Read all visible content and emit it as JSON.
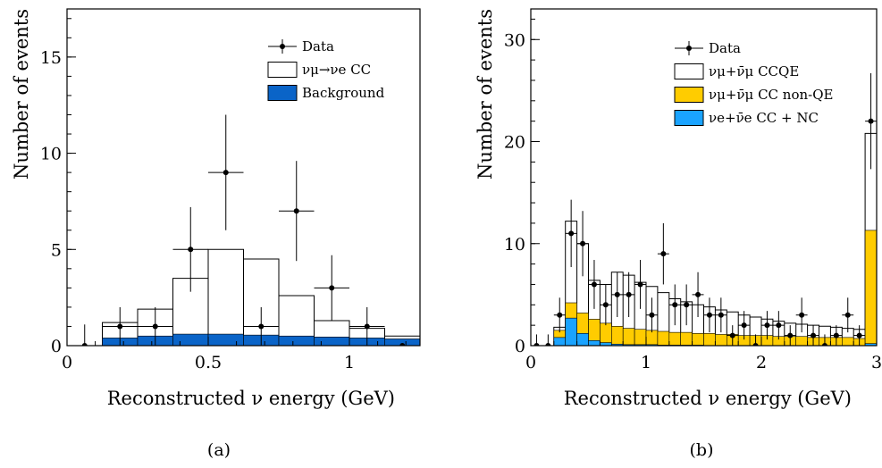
{
  "chart_data": [
    {
      "type": "histogram",
      "xlabel": "Reconstructed ν energy (GeV)",
      "ylabel": "Number of events",
      "xlim": [
        0,
        1.25
      ],
      "ylim": [
        0,
        17.5
      ],
      "xticks": [
        0,
        0.5,
        1
      ],
      "xtick_labels": [
        "0",
        "0.5",
        "1"
      ],
      "yticks": [
        0,
        5,
        10,
        15
      ],
      "ytick_labels": [
        "0",
        "5",
        "10",
        "15"
      ],
      "legend": {
        "placement": "top-right",
        "entries": [
          {
            "label": "Data",
            "kind": "marker"
          },
          {
            "label": "νμ→νe CC",
            "kind": "open-box"
          },
          {
            "label": "Background",
            "kind": "filled-box",
            "color": "#0a64c8"
          }
        ]
      },
      "bin_edges": [
        0,
        0.125,
        0.25,
        0.375,
        0.5,
        0.625,
        0.75,
        0.875,
        1.0,
        1.125,
        1.25
      ],
      "series": [
        {
          "name": "νμ→νe CC",
          "kind": "stack-top-outline",
          "values": [
            0,
            1.2,
            1.9,
            3.5,
            5.0,
            4.5,
            2.6,
            1.3,
            0.9,
            0.5
          ]
        },
        {
          "name": "Background",
          "kind": "filled-histogram",
          "color": "#0a64c8",
          "values": [
            0,
            0.4,
            0.5,
            0.6,
            0.6,
            0.55,
            0.5,
            0.45,
            0.4,
            0.35
          ]
        },
        {
          "name": "Data",
          "kind": "points-with-errors",
          "x": [
            0.0625,
            0.1875,
            0.3125,
            0.4375,
            0.5625,
            0.6875,
            0.8125,
            0.9375,
            1.0625,
            1.1875
          ],
          "y": [
            0,
            1,
            1,
            5,
            9,
            1,
            7,
            3,
            1,
            0
          ],
          "err_up": [
            1.1,
            1.0,
            1.0,
            2.2,
            3.0,
            1.0,
            2.6,
            1.7,
            1.0,
            0
          ],
          "err_down": [
            0,
            1.0,
            1.0,
            2.2,
            3.0,
            1.0,
            2.6,
            1.7,
            1.0,
            0
          ]
        }
      ],
      "caption": "(a)"
    },
    {
      "type": "histogram",
      "xlabel": "Reconstructed ν energy (GeV)",
      "ylabel": "Number of events",
      "xlim": [
        0,
        3
      ],
      "ylim": [
        0,
        33
      ],
      "xticks": [
        0,
        1,
        2,
        3
      ],
      "xtick_labels": [
        "0",
        "1",
        "2",
        "3"
      ],
      "yticks": [
        0,
        10,
        20,
        30
      ],
      "ytick_labels": [
        "0",
        "10",
        "20",
        "30"
      ],
      "legend": {
        "placement": "top-right",
        "entries": [
          {
            "label": "Data",
            "kind": "marker"
          },
          {
            "label": "νμ+ν̄μ CCQE",
            "kind": "open-box"
          },
          {
            "label": "νμ+ν̄μ CC non-QE",
            "kind": "filled-box",
            "color": "#ffcc00"
          },
          {
            "label": "νe+ν̄e CC + NC",
            "kind": "filled-box",
            "color": "#1aa3ff"
          }
        ]
      },
      "bin_edges": [
        0,
        0.1,
        0.2,
        0.3,
        0.4,
        0.5,
        0.6,
        0.7,
        0.8,
        0.9,
        1.0,
        1.1,
        1.2,
        1.3,
        1.4,
        1.5,
        1.6,
        1.7,
        1.8,
        1.9,
        2.0,
        2.1,
        2.2,
        2.3,
        2.4,
        2.5,
        2.6,
        2.7,
        2.8,
        2.9,
        3.0
      ],
      "series": [
        {
          "name": "νμ+ν̄μ CCQE",
          "kind": "stack-top-outline",
          "values": [
            0,
            0,
            1.8,
            12.2,
            10.0,
            6.4,
            6.0,
            7.2,
            6.9,
            6.2,
            5.8,
            5.2,
            4.6,
            4.3,
            4.0,
            3.8,
            3.5,
            3.3,
            3.0,
            2.8,
            2.6,
            2.4,
            2.2,
            2.1,
            2.0,
            1.9,
            1.8,
            1.7,
            1.6,
            20.8
          ]
        },
        {
          "name": "νμ+ν̄μ CC non-QE",
          "kind": "filled-histogram",
          "color": "#ffcc00",
          "values": [
            0,
            0,
            1.5,
            4.2,
            3.2,
            2.6,
            2.2,
            1.9,
            1.7,
            1.6,
            1.5,
            1.4,
            1.3,
            1.3,
            1.2,
            1.2,
            1.1,
            1.1,
            1.0,
            1.0,
            1.0,
            0.9,
            0.9,
            0.9,
            0.8,
            0.8,
            0.8,
            0.8,
            0.7,
            11.3
          ]
        },
        {
          "name": "νe+ν̄e CC + NC",
          "kind": "filled-histogram",
          "color": "#1aa3ff",
          "values": [
            0,
            0,
            0.8,
            2.7,
            1.2,
            0.5,
            0.3,
            0.15,
            0.1,
            0.1,
            0.1,
            0.05,
            0.05,
            0.05,
            0.05,
            0,
            0,
            0,
            0,
            0,
            0,
            0,
            0,
            0,
            0,
            0,
            0,
            0,
            0,
            0.2
          ]
        },
        {
          "name": "Data",
          "kind": "points-with-errors",
          "x": [
            0.05,
            0.15,
            0.25,
            0.35,
            0.45,
            0.55,
            0.65,
            0.75,
            0.85,
            0.95,
            1.05,
            1.15,
            1.25,
            1.35,
            1.45,
            1.55,
            1.65,
            1.75,
            1.85,
            1.95,
            2.05,
            2.15,
            2.25,
            2.35,
            2.45,
            2.55,
            2.65,
            2.75,
            2.85,
            2.95
          ],
          "y": [
            0,
            0,
            3,
            11,
            10,
            6,
            4,
            5,
            5,
            6,
            3,
            9,
            4,
            4,
            5,
            3,
            3,
            1,
            2,
            0,
            2,
            2,
            1,
            3,
            1,
            0,
            1,
            3,
            1,
            22
          ],
          "err_up": [
            1.1,
            1.1,
            1.7,
            3.3,
            3.2,
            2.4,
            2.0,
            2.2,
            2.2,
            2.4,
            1.7,
            3.0,
            2.0,
            2.0,
            2.2,
            1.7,
            1.7,
            1.0,
            1.4,
            1.1,
            1.4,
            1.4,
            1.0,
            1.7,
            1.0,
            1.1,
            1.0,
            1.7,
            1.0,
            4.7
          ],
          "err_down": [
            0,
            0,
            1.7,
            3.3,
            3.2,
            2.4,
            2.0,
            2.2,
            2.2,
            2.4,
            1.7,
            3.0,
            2.0,
            2.0,
            2.2,
            1.7,
            1.7,
            1.0,
            1.4,
            0,
            1.4,
            1.4,
            1.0,
            1.7,
            1.0,
            0,
            1.0,
            1.7,
            1.0,
            4.7
          ]
        }
      ],
      "caption": "(b)"
    }
  ]
}
